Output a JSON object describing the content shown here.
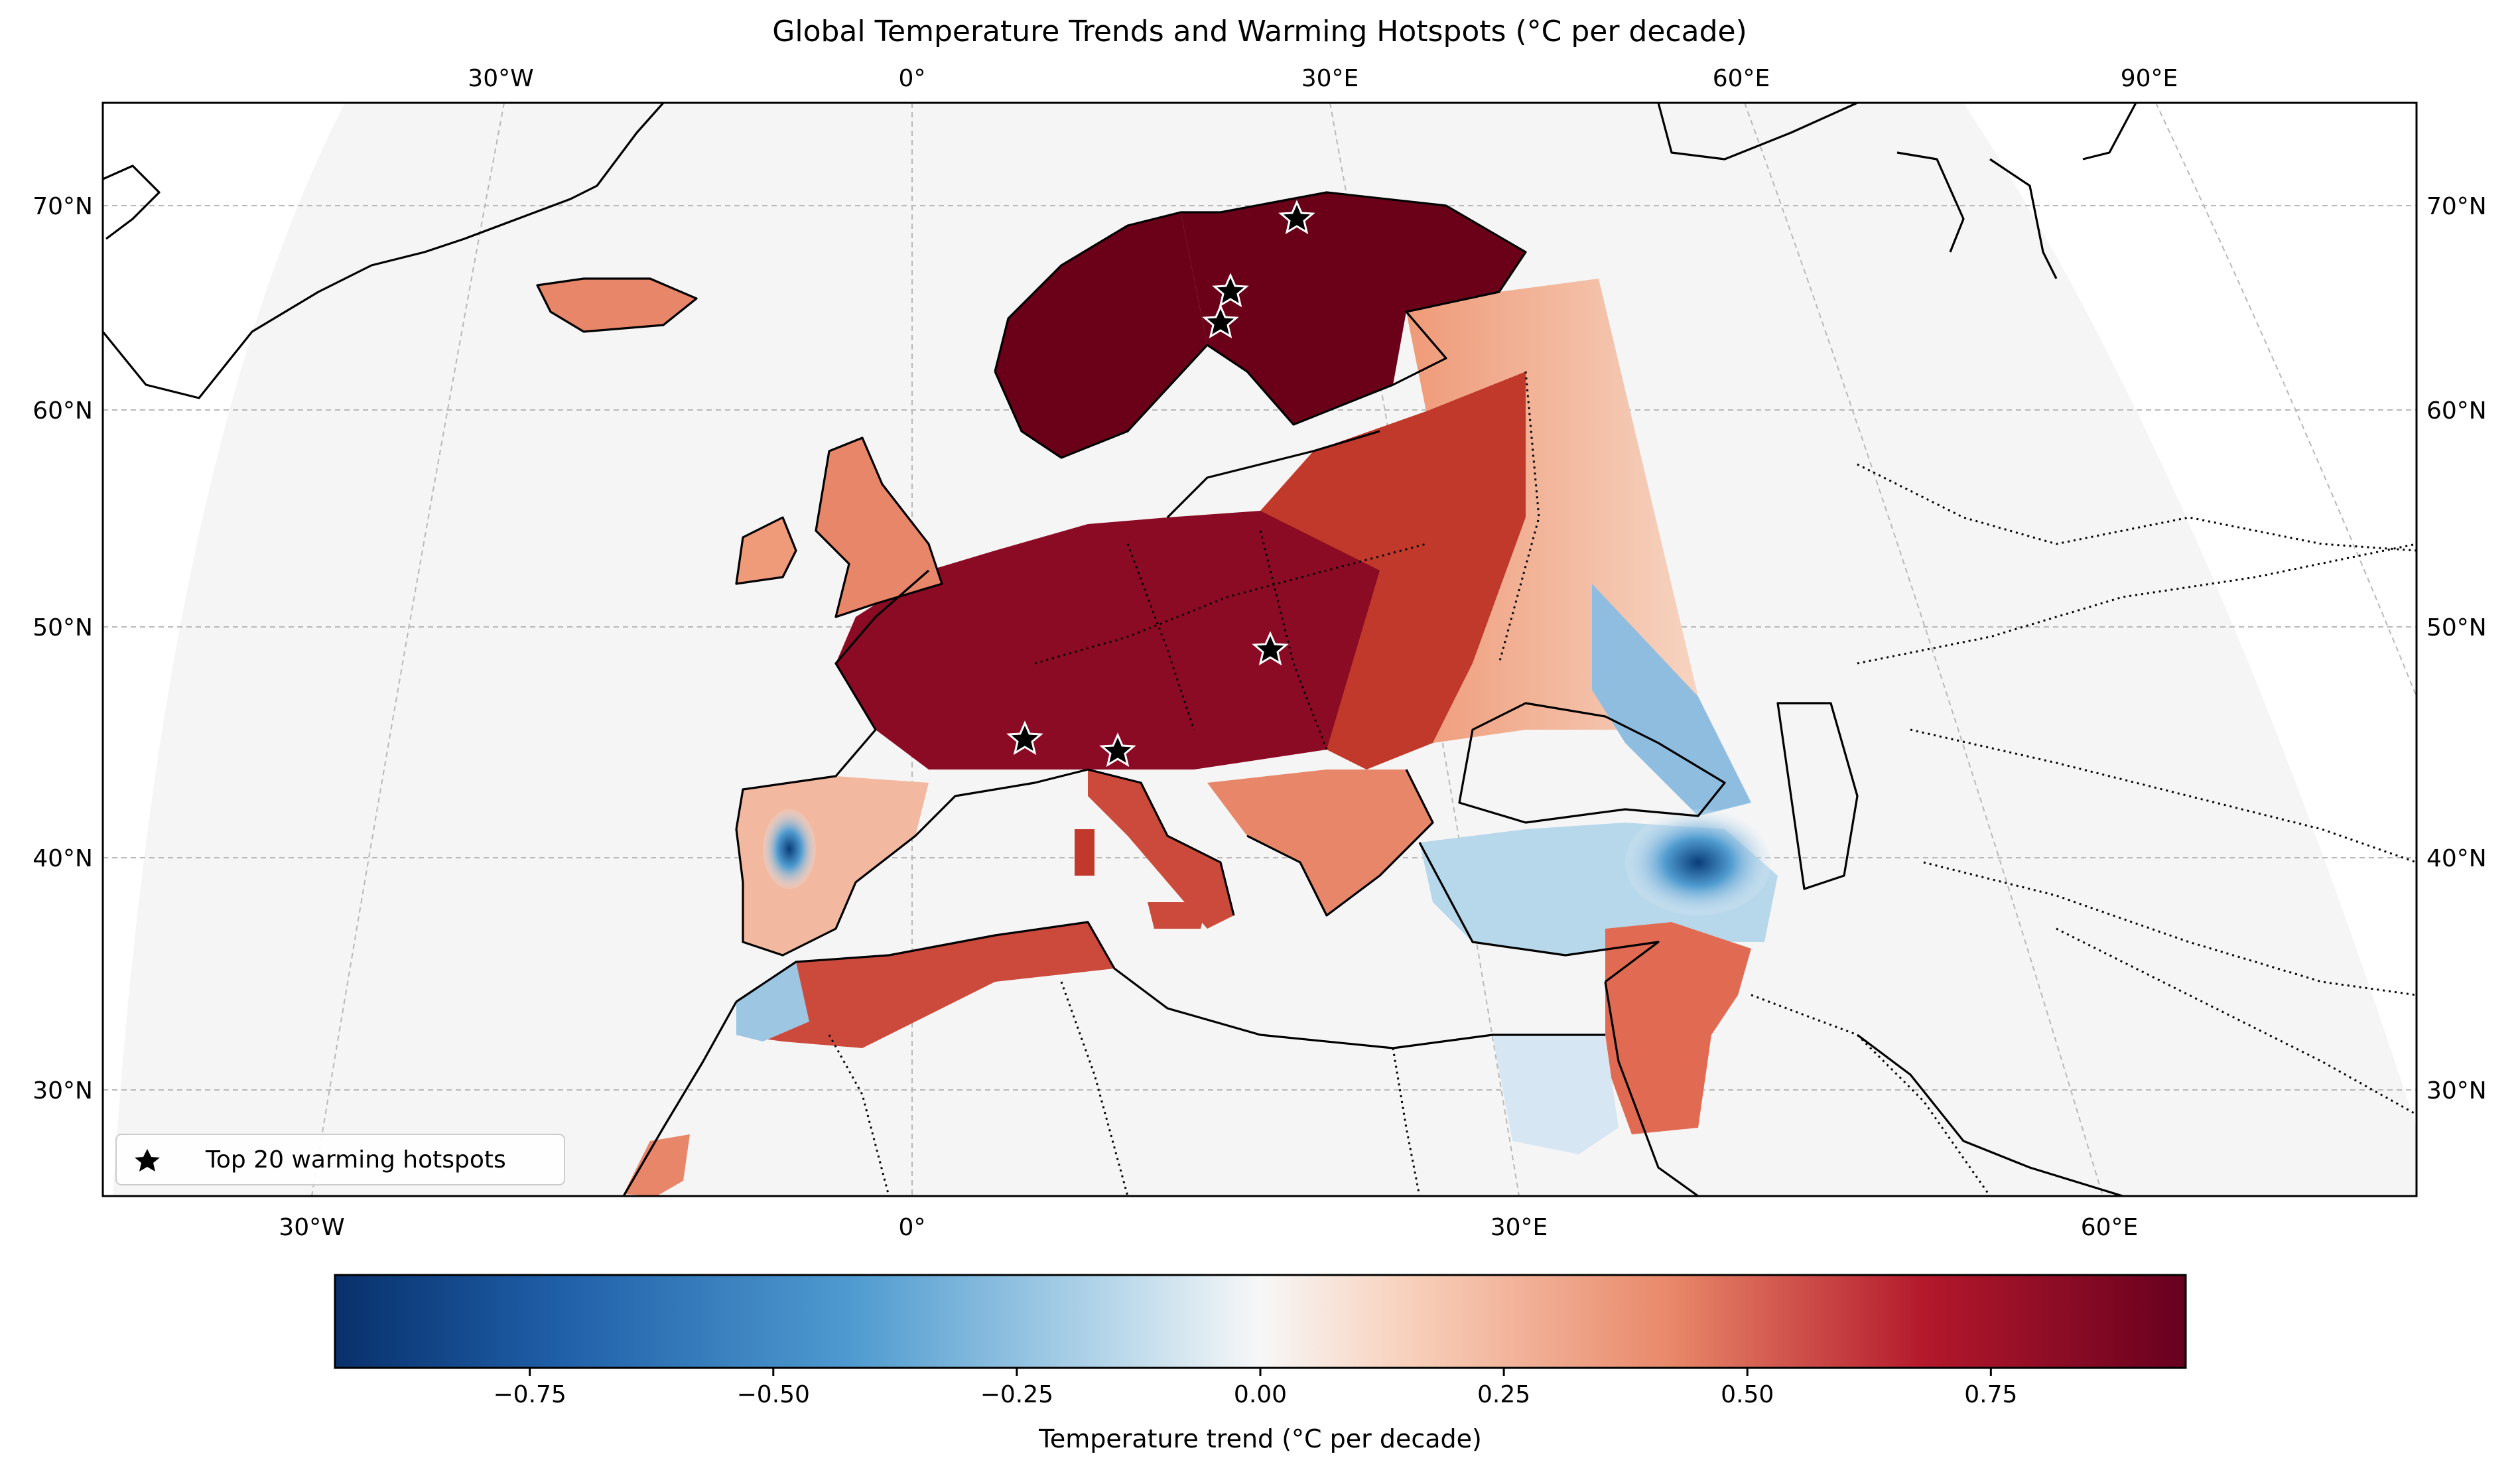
{
  "title": "Global Temperature Trends and Warming Hotspots (°C per decade)",
  "map": {
    "top_lon_labels": [
      "30°W",
      "0°",
      "30°E",
      "60°E",
      "90°E"
    ],
    "bottom_lon_labels": [
      "30°W",
      "0°",
      "30°E",
      "60°E"
    ],
    "lat_labels": [
      "70°N",
      "60°N",
      "50°N",
      "40°N",
      "30°N"
    ],
    "legend_label": "Top 20 warming hotspots",
    "colors": {
      "neg_strong": "#0a3d78",
      "neg_mid": "#4f9bd0",
      "neutral": "#f7f7f7",
      "pos_mid": "#ef9a78",
      "pos_strong": "#b3182b",
      "pos_extreme": "#6b0019"
    }
  },
  "colorbar": {
    "ticks": [
      "−0.75",
      "−0.50",
      "−0.25",
      "0.00",
      "0.25",
      "0.50",
      "0.75"
    ],
    "label": "Temperature trend (°C per decade)",
    "range": [
      -0.95,
      0.95
    ]
  }
}
